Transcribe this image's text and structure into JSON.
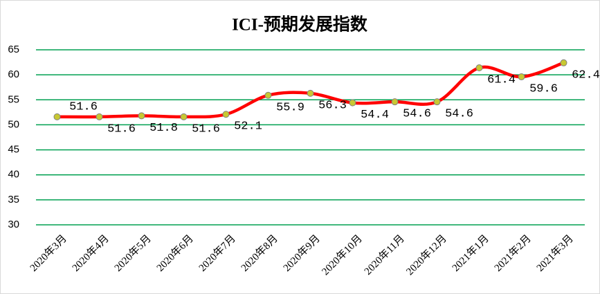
{
  "chart_data": {
    "type": "line",
    "title": "ICI-预期发展指数",
    "categories": [
      "2020年3月",
      "2020年4月",
      "2020年5月",
      "2020年6月",
      "2020年7月",
      "2020年8月",
      "2020年9月",
      "2020年10月",
      "2020年11月",
      "2020年12月",
      "2021年1月",
      "2021年2月",
      "2021年3月"
    ],
    "values": [
      51.6,
      51.6,
      51.8,
      51.6,
      52.1,
      55.9,
      56.3,
      54.4,
      54.6,
      54.6,
      61.4,
      59.6,
      62.4
    ],
    "color": "#ff0000",
    "marker_color": "#c8c832",
    "smooth": true,
    "ylim": [
      30,
      65
    ],
    "yticks": [
      30,
      35,
      40,
      45,
      50,
      55,
      60,
      65
    ],
    "grid": true,
    "grid_color": "#00a050"
  }
}
